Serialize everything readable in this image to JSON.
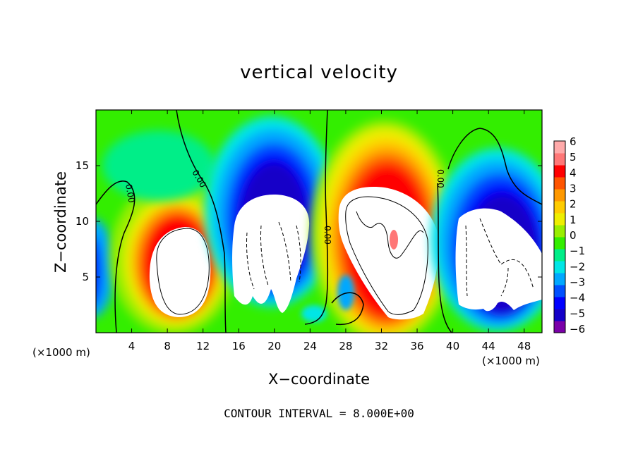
{
  "chart_data": {
    "type": "heatmap",
    "title": "vertical velocity",
    "xlabel": "X−coordinate",
    "ylabel": "Z−coordinate",
    "x_unit": "(×1000 m)",
    "x_unit_right": "(×1000 m)",
    "xlim": [
      0,
      50
    ],
    "ylim": [
      0,
      20
    ],
    "x_ticks": [
      4,
      8,
      12,
      16,
      20,
      24,
      28,
      32,
      36,
      40,
      44,
      48
    ],
    "x_tick_labels": [
      "4",
      "8",
      "12",
      "16",
      "20",
      "24",
      "28",
      "32",
      "36",
      "40",
      "44",
      "48"
    ],
    "y_ticks": [
      5,
      10,
      15
    ],
    "y_tick_labels": [
      "5",
      "10",
      "15"
    ],
    "colorbar": {
      "min": -6,
      "max": 6,
      "labels": [
        "6",
        "5",
        "4",
        "3",
        "2",
        "1",
        "0",
        "−1",
        "−2",
        "−3",
        "−4",
        "−5",
        "−6"
      ]
    },
    "contour_label": "0.00",
    "footer": "CONTOUR INTERVAL = 8.000E+00",
    "features": [
      {
        "kind": "updraft",
        "x_center": 10,
        "z_top": 11,
        "peak_above": 6
      },
      {
        "kind": "downdraft",
        "x_center": 20,
        "z_top": 13,
        "peak_below": -6
      },
      {
        "kind": "updraft",
        "x_center": 31,
        "z_top": 17,
        "peak_above": 6
      },
      {
        "kind": "downdraft",
        "x_center": 44,
        "z_top": 12,
        "peak_below": -6
      }
    ]
  },
  "colors": {
    "scale": [
      "#7a00a8",
      "#1400c8",
      "#0000ff",
      "#0050ff",
      "#00a8ff",
      "#00e6e6",
      "#00ee88",
      "#33ee00",
      "#99ee00",
      "#eeee00",
      "#ffcc00",
      "#ff9900",
      "#ff5500",
      "#ff0000",
      "#ff7777",
      "#ffaaaa"
    ],
    "background_field": "#33ee00"
  }
}
